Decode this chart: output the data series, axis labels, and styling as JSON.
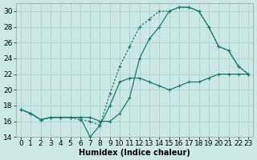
{
  "xlabel": "Humidex (Indice chaleur)",
  "bg_color": "#cce8e5",
  "line_color": "#1a7a6e",
  "grid_color": "#aed4d0",
  "xlim": [
    -0.5,
    23.5
  ],
  "ylim": [
    14,
    31
  ],
  "xticks": [
    0,
    1,
    2,
    3,
    4,
    5,
    6,
    7,
    8,
    9,
    10,
    11,
    12,
    13,
    14,
    15,
    16,
    17,
    18,
    19,
    20,
    21,
    22,
    23
  ],
  "yticks": [
    14,
    16,
    18,
    20,
    22,
    24,
    26,
    28,
    30
  ],
  "line1_x": [
    0,
    1,
    2,
    3,
    4,
    5,
    6,
    7,
    8,
    9,
    10,
    11,
    12,
    13,
    14,
    15,
    16,
    17,
    18,
    19,
    20,
    21,
    22,
    23
  ],
  "line1_y": [
    17.5,
    17.0,
    16.2,
    16.5,
    16.5,
    16.5,
    16.5,
    14.0,
    15.5,
    18.0,
    21.0,
    21.5,
    21.5,
    21.0,
    20.5,
    20.0,
    20.5,
    21.0,
    21.0,
    21.5,
    22.0,
    22.0,
    22.0,
    22.0
  ],
  "line2_x": [
    0,
    1,
    2,
    3,
    4,
    5,
    6,
    7,
    8,
    9,
    10,
    11,
    12,
    13,
    14,
    15,
    16,
    17,
    18,
    19,
    20,
    21,
    22,
    23
  ],
  "line2_y": [
    17.5,
    17.0,
    16.2,
    16.5,
    16.5,
    16.5,
    16.2,
    16.0,
    15.5,
    19.5,
    23.0,
    25.5,
    28.0,
    29.0,
    30.0,
    30.0,
    30.5,
    30.5,
    30.0,
    28.0,
    25.5,
    25.0,
    23.0,
    22.0
  ],
  "line3_x": [
    0,
    1,
    2,
    3,
    4,
    5,
    6,
    7,
    8,
    9,
    10,
    11,
    12,
    13,
    14,
    15,
    16,
    17,
    18,
    19,
    20,
    21,
    22,
    23
  ],
  "line3_y": [
    17.5,
    17.0,
    16.2,
    16.5,
    16.5,
    16.5,
    16.5,
    16.5,
    16.0,
    16.0,
    17.0,
    19.0,
    24.0,
    26.5,
    28.0,
    30.0,
    30.5,
    30.5,
    30.0,
    28.0,
    25.5,
    25.0,
    23.0,
    22.0
  ],
  "font_size": 7,
  "tick_fontsize": 6.5
}
